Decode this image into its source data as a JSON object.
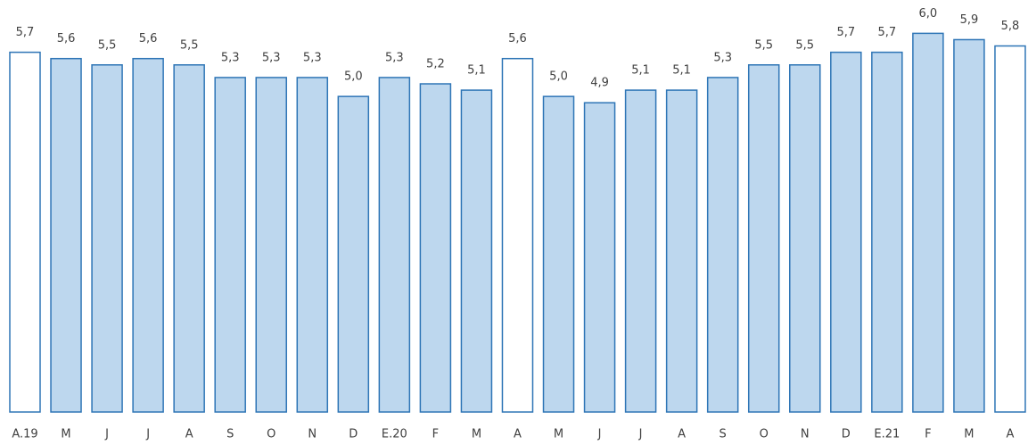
{
  "chart_data": {
    "type": "bar",
    "categories": [
      "A.19",
      "M",
      "J",
      "J",
      "A",
      "S",
      "O",
      "N",
      "D",
      "E.20",
      "F",
      "M",
      "A",
      "M",
      "J",
      "J",
      "A",
      "S",
      "O",
      "N",
      "D",
      "E.21",
      "F",
      "M",
      "A"
    ],
    "values": [
      5.7,
      5.6,
      5.5,
      5.6,
      5.5,
      5.3,
      5.3,
      5.3,
      5.0,
      5.3,
      5.2,
      5.1,
      5.6,
      5.0,
      4.9,
      5.1,
      5.1,
      5.3,
      5.5,
      5.5,
      5.7,
      5.7,
      6.0,
      5.9,
      5.8
    ],
    "value_labels": [
      "5,7",
      "5,6",
      "5,5",
      "5,6",
      "5,5",
      "5,3",
      "5,3",
      "5,3",
      "5,0",
      "5,3",
      "5,2",
      "5,1",
      "5,6",
      "5,0",
      "4,9",
      "5,1",
      "5,1",
      "5,3",
      "5,5",
      "5,5",
      "5,7",
      "5,7",
      "6,0",
      "5,9",
      "5,8"
    ],
    "colors": [
      "#ffffff",
      "#bdd7ee",
      "#bdd7ee",
      "#bdd7ee",
      "#bdd7ee",
      "#bdd7ee",
      "#bdd7ee",
      "#bdd7ee",
      "#bdd7ee",
      "#bdd7ee",
      "#bdd7ee",
      "#bdd7ee",
      "#ffffff",
      "#bdd7ee",
      "#bdd7ee",
      "#bdd7ee",
      "#bdd7ee",
      "#bdd7ee",
      "#bdd7ee",
      "#bdd7ee",
      "#bdd7ee",
      "#bdd7ee",
      "#bdd7ee",
      "#bdd7ee",
      "#ffffff"
    ],
    "edge_color": "#2e75b6",
    "ylim": [
      0,
      6.5
    ]
  }
}
